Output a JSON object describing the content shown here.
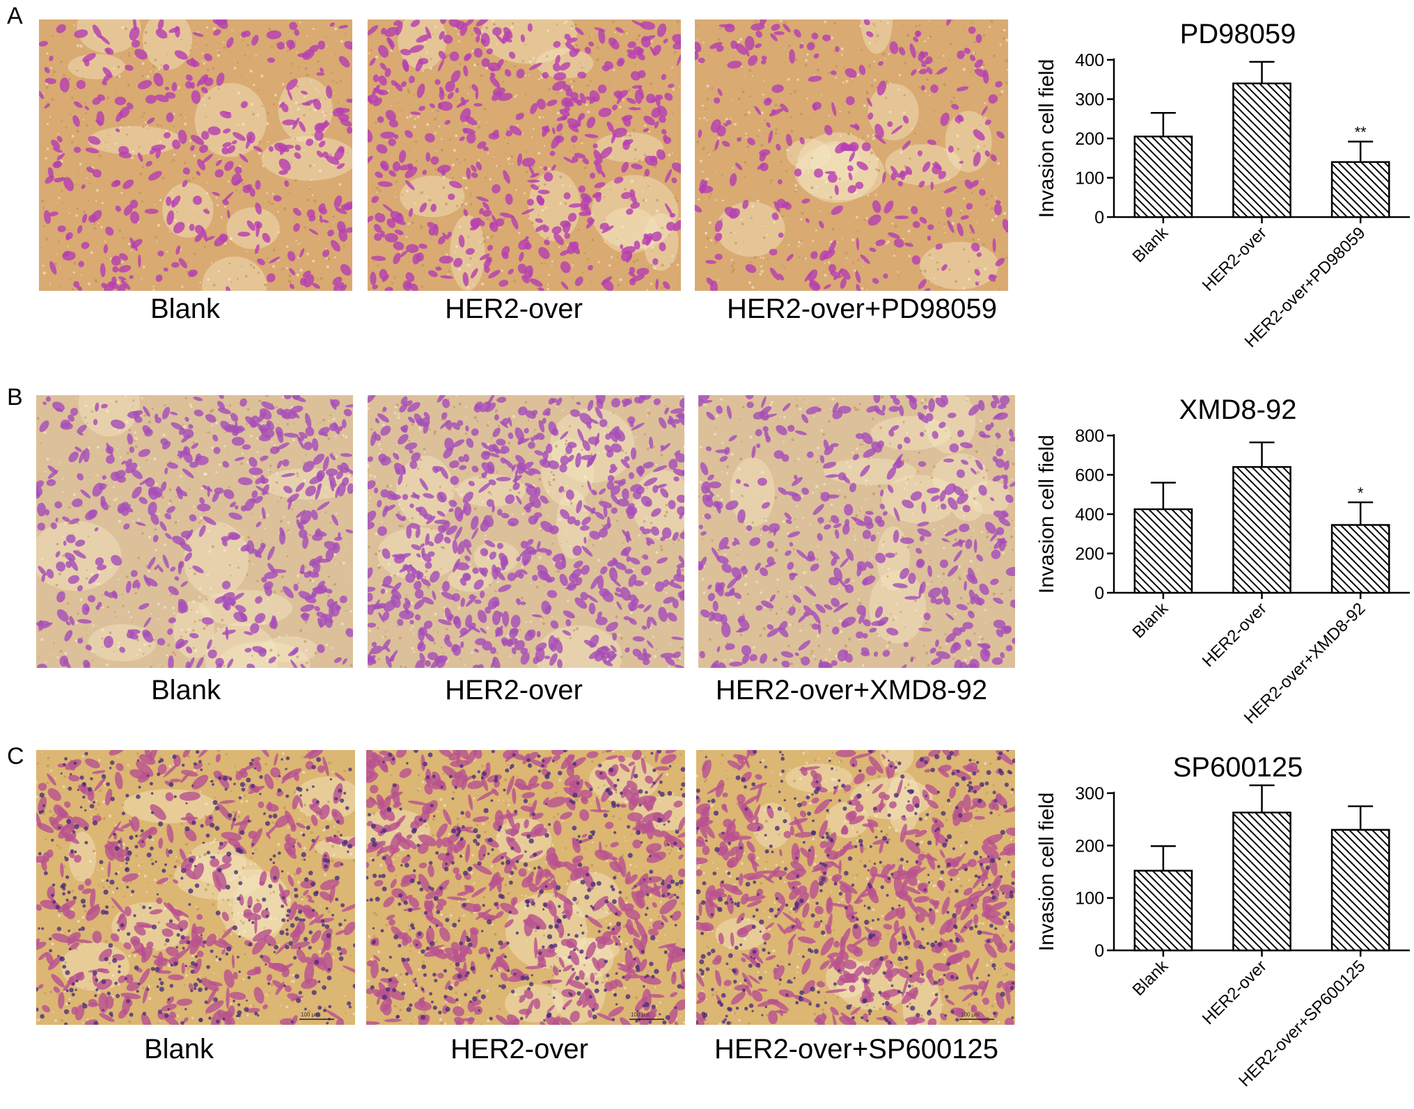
{
  "panels": [
    {
      "letter": "A",
      "images": [
        {
          "caption": "Blank",
          "stain": "light",
          "density": 0.35
        },
        {
          "caption": "HER2-over",
          "stain": "light",
          "density": 0.6
        },
        {
          "caption": "HER2-over+PD98059",
          "stain": "light",
          "density": 0.25
        }
      ]
    },
    {
      "letter": "B",
      "images": [
        {
          "caption": "Blank",
          "stain": "dense",
          "density": 0.6
        },
        {
          "caption": "HER2-over",
          "stain": "dense",
          "density": 0.95
        },
        {
          "caption": "HER2-over+XMD8-92",
          "stain": "dense",
          "density": 0.55
        }
      ]
    },
    {
      "letter": "C",
      "images": [
        {
          "caption": "Blank",
          "stain": "hematoxylin",
          "density": 0.5,
          "scalebar": "100 μm"
        },
        {
          "caption": "HER2-over",
          "stain": "hematoxylin",
          "density": 0.8,
          "scalebar": "100 μm"
        },
        {
          "caption": "HER2-over+SP600125",
          "stain": "hematoxylin",
          "density": 0.7,
          "scalebar": "100 μm"
        }
      ]
    }
  ],
  "chart_data": [
    {
      "type": "bar",
      "title": "PD98059",
      "ylabel": "Invasion cell field",
      "xlabel": "",
      "categories": [
        "Blank",
        "HER2-over",
        "HER2-over+PD98059"
      ],
      "values": [
        205,
        340,
        140
      ],
      "errors": [
        60,
        55,
        52
      ],
      "annotations": [
        "",
        "",
        "**"
      ],
      "ylim": [
        0,
        400
      ],
      "yticks": [
        0,
        100,
        200,
        300,
        400
      ],
      "fill": "hatched",
      "grid": false
    },
    {
      "type": "bar",
      "title": "XMD8-92",
      "ylabel": "Invasion cell field",
      "xlabel": "",
      "categories": [
        "Blank",
        "HER2-over",
        "HER2-over+XMD8-92"
      ],
      "values": [
        425,
        640,
        345
      ],
      "errors": [
        135,
        125,
        115
      ],
      "annotations": [
        "",
        "",
        "*"
      ],
      "ylim": [
        0,
        800
      ],
      "yticks": [
        0,
        200,
        400,
        600,
        800
      ],
      "fill": "hatched",
      "grid": false
    },
    {
      "type": "bar",
      "title": "SP600125",
      "ylabel": "Invasion cell field",
      "xlabel": "",
      "categories": [
        "Blank",
        "HER2-over",
        "HER2-over+SP600125"
      ],
      "values": [
        152,
        263,
        230
      ],
      "errors": [
        47,
        52,
        45
      ],
      "annotations": [
        "",
        "",
        ""
      ],
      "ylim": [
        0,
        300
      ],
      "yticks": [
        0,
        100,
        200,
        300
      ],
      "fill": "hatched",
      "grid": false
    }
  ],
  "colors": {
    "light_bg": "#d9aa72",
    "dense_bg": "#dcc09a",
    "hema_bg": "#dcb673",
    "cell_magenta": "#b63fb1",
    "cell_violet": "#a64eb8",
    "cell_pink": "#b8528f",
    "nucleus": "#4b2f7a"
  }
}
